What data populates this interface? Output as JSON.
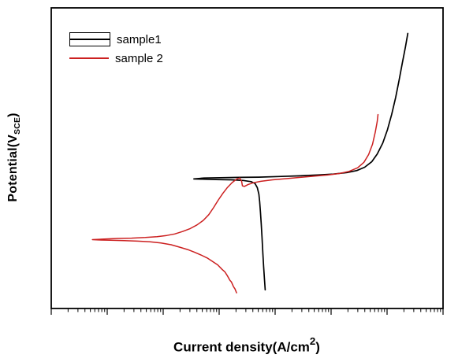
{
  "chart_data": {
    "type": "line",
    "title": "",
    "x_axis": {
      "label_prefix": "Current density(A/cm",
      "label_sup": "2",
      "label_suffix": ")",
      "scale": "log",
      "tick_labels": [],
      "decades": 7
    },
    "y_axis": {
      "label_prefix": "Potential(V",
      "label_sub": "SCE",
      "label_suffix": ")",
      "tick_labels": []
    },
    "legend_position": "top-left",
    "coordinate_space": "normalized 0-100 (x: left to right, y: bottom to top)",
    "series": [
      {
        "name": "sample1",
        "color": "#000000",
        "points": [
          [
            54.6,
            6.2
          ],
          [
            54.4,
            10.0
          ],
          [
            54.2,
            14.0
          ],
          [
            54.0,
            18.5
          ],
          [
            53.8,
            23.5
          ],
          [
            53.6,
            28.0
          ],
          [
            53.4,
            32.0
          ],
          [
            53.2,
            35.5
          ],
          [
            53.0,
            38.0
          ],
          [
            52.6,
            40.2
          ],
          [
            52.0,
            41.6
          ],
          [
            51.0,
            42.2
          ],
          [
            49.0,
            42.6
          ],
          [
            46.0,
            42.8
          ],
          [
            42.0,
            42.9
          ],
          [
            38.5,
            43.0
          ],
          [
            36.4,
            43.1
          ],
          [
            39.0,
            43.4
          ],
          [
            43.0,
            43.5
          ],
          [
            48.0,
            43.6
          ],
          [
            53.0,
            43.7
          ],
          [
            58.0,
            43.9
          ],
          [
            63.0,
            44.1
          ],
          [
            68.0,
            44.4
          ],
          [
            72.0,
            44.7
          ],
          [
            75.5,
            45.2
          ],
          [
            78.0,
            45.9
          ],
          [
            80.0,
            47.0
          ],
          [
            81.8,
            48.8
          ],
          [
            83.2,
            51.4
          ],
          [
            84.6,
            55.0
          ],
          [
            85.8,
            59.4
          ],
          [
            86.9,
            64.6
          ],
          [
            87.9,
            70.2
          ],
          [
            88.8,
            76.0
          ],
          [
            89.6,
            81.6
          ],
          [
            90.4,
            87.0
          ],
          [
            91.0,
            91.5
          ]
        ]
      },
      {
        "name": "sample 2",
        "color": "#cc2020",
        "points": [
          [
            47.3,
            5.2
          ],
          [
            46.9,
            6.5
          ],
          [
            46.5,
            7.3
          ],
          [
            46.0,
            8.8
          ],
          [
            45.6,
            9.4
          ],
          [
            45.0,
            10.8
          ],
          [
            44.3,
            12.2
          ],
          [
            43.6,
            13.0
          ],
          [
            42.5,
            14.5
          ],
          [
            41.2,
            15.6
          ],
          [
            39.8,
            16.8
          ],
          [
            38.2,
            17.8
          ],
          [
            36.6,
            18.7
          ],
          [
            34.8,
            19.6
          ],
          [
            32.8,
            20.4
          ],
          [
            30.6,
            21.2
          ],
          [
            28.0,
            21.8
          ],
          [
            25.2,
            22.2
          ],
          [
            22.0,
            22.4
          ],
          [
            18.6,
            22.6
          ],
          [
            15.0,
            22.7
          ],
          [
            12.0,
            22.8
          ],
          [
            10.5,
            22.9
          ],
          [
            13.5,
            23.1
          ],
          [
            17.0,
            23.3
          ],
          [
            20.5,
            23.4
          ],
          [
            24.0,
            23.6
          ],
          [
            27.0,
            23.9
          ],
          [
            29.5,
            24.3
          ],
          [
            31.5,
            24.8
          ],
          [
            33.5,
            25.6
          ],
          [
            35.5,
            26.6
          ],
          [
            37.2,
            27.8
          ],
          [
            38.8,
            29.3
          ],
          [
            40.2,
            31.2
          ],
          [
            41.4,
            33.5
          ],
          [
            42.6,
            36.0
          ],
          [
            43.8,
            38.3
          ],
          [
            45.0,
            40.3
          ],
          [
            46.2,
            41.9
          ],
          [
            47.3,
            43.0
          ],
          [
            48.1,
            43.4
          ],
          [
            48.6,
            42.3
          ],
          [
            48.8,
            40.8
          ],
          [
            49.3,
            40.6
          ],
          [
            50.2,
            41.2
          ],
          [
            51.5,
            41.8
          ],
          [
            53.5,
            42.3
          ],
          [
            56.5,
            42.8
          ],
          [
            60.0,
            43.2
          ],
          [
            63.5,
            43.6
          ],
          [
            67.0,
            44.0
          ],
          [
            70.5,
            44.4
          ],
          [
            73.5,
            44.9
          ],
          [
            76.0,
            45.6
          ],
          [
            78.2,
            46.8
          ],
          [
            79.8,
            48.6
          ],
          [
            81.0,
            51.2
          ],
          [
            82.0,
            54.6
          ],
          [
            82.7,
            58.6
          ],
          [
            83.2,
            62.2
          ],
          [
            83.4,
            64.5
          ]
        ]
      }
    ]
  },
  "layout_colors": {
    "background": "#ffffff",
    "axis": "#000000",
    "text": "#000000"
  }
}
